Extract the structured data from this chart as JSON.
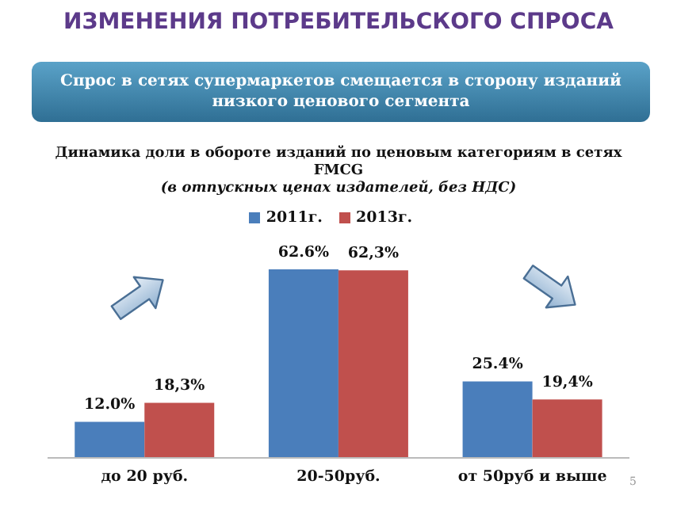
{
  "chart_data": {
    "type": "bar",
    "title": "ИЗМЕНЕНИЯ ПОТРЕБИТЕЛЬСКОГО СПРОСА",
    "subtitle": "Спрос в сетях супермаркетов смещается в сторону  изданий низкого ценового сегмента",
    "annotations": [
      "Динамика доли в обороте изданий по ценовым категориям в сетях FMCG",
      "(в отпускных ценах издателей, без НДС)",
      "5"
    ],
    "categories": [
      "до 20 руб.",
      "20-50руб.",
      "от 50руб и выше"
    ],
    "series": [
      {
        "name": "2011г.",
        "color": "#4a7ebb",
        "values": [
          12.0,
          62.6,
          25.4
        ],
        "value_labels": [
          "12.0%",
          "62.6%",
          "25.4%"
        ]
      },
      {
        "name": "2013г.",
        "color": "#c0504d",
        "values": [
          18.3,
          62.3,
          19.4
        ],
        "value_labels": [
          "18,3%",
          "62,3%",
          "19,4%"
        ]
      }
    ],
    "legend": "top",
    "grid": false,
    "tick_labels": "x"
  }
}
